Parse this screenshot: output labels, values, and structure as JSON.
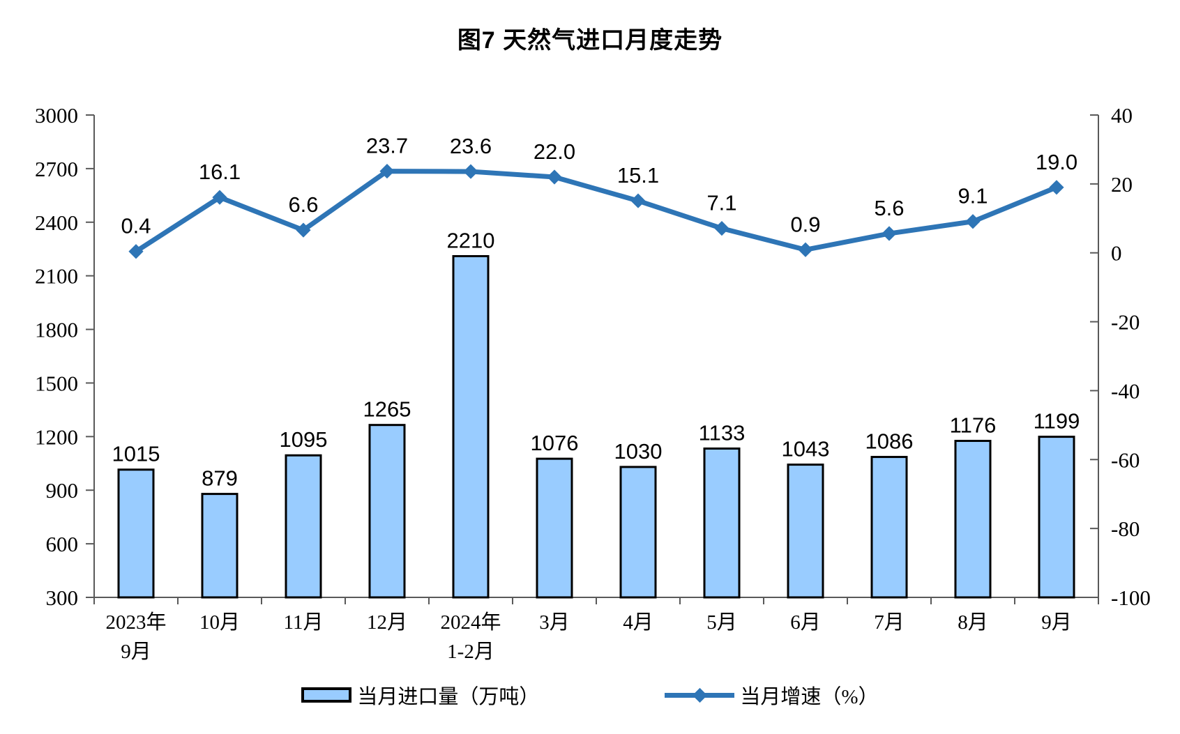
{
  "chart_data": {
    "type": "bar+line combo",
    "title": "图7 天然气进口月度走势",
    "categories": [
      [
        "2023年",
        "9月"
      ],
      [
        "10月"
      ],
      [
        "11月"
      ],
      [
        "12月"
      ],
      [
        "2024年",
        "1-2月"
      ],
      [
        "3月"
      ],
      [
        "4月"
      ],
      [
        "5月"
      ],
      [
        "6月"
      ],
      [
        "7月"
      ],
      [
        "8月"
      ],
      [
        "9月"
      ]
    ],
    "series": [
      {
        "name": "当月进口量（万吨）",
        "type": "bar",
        "axis": "left",
        "values": [
          1015,
          879,
          1095,
          1265,
          2210,
          1076,
          1030,
          1133,
          1043,
          1086,
          1176,
          1199
        ],
        "decimals": 0,
        "fill": "#99CCFF",
        "stroke": "#000000"
      },
      {
        "name": "当月增速（%）",
        "type": "line",
        "axis": "right",
        "values": [
          0.4,
          16.1,
          6.6,
          23.7,
          23.6,
          22.0,
          15.1,
          7.1,
          0.9,
          5.6,
          9.1,
          19.0
        ],
        "decimals": 1,
        "color": "#2E75B6"
      }
    ],
    "left_axis": {
      "min": 300,
      "max": 3000,
      "step": 300
    },
    "right_axis": {
      "min": -100,
      "max": 40,
      "step": 20
    },
    "grid": false,
    "legend_position": "bottom",
    "data_labels": true,
    "axis_color": "#595959",
    "label_color": "#000000"
  }
}
